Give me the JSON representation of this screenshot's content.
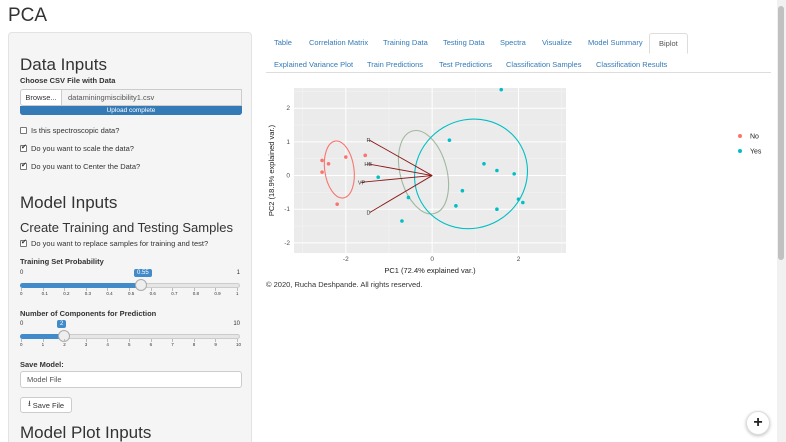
{
  "page_title": "PCA",
  "sidebar": {
    "data_inputs_title": "Data Inputs",
    "csv_label": "Choose CSV File with Data",
    "browse_label": "Browse...",
    "file_name": "dataminingmiscibility1.csv",
    "upload_status": "Upload complete",
    "upload_progress": 1.0,
    "checkboxes": [
      {
        "label": "Is this spectroscopic data?",
        "checked": false
      },
      {
        "label": "Do you want to scale the data?",
        "checked": true
      },
      {
        "label": "Do you want to Center the Data?",
        "checked": true
      }
    ],
    "model_inputs_title": "Model Inputs",
    "create_samples_title": "Create Training and Testing Samples",
    "replace_samples_label": "Do you want to replace samples for training and test?",
    "replace_samples_checked": true,
    "training_prob": {
      "label": "Training Set Probability",
      "min": "0",
      "max": "1",
      "value": "0.55",
      "value_num": 0.55,
      "ticks": [
        "0",
        "0.1",
        "0.2",
        "0.3",
        "0.4",
        "0.5",
        "0.6",
        "0.7",
        "0.8",
        "0.9",
        "1"
      ]
    },
    "components": {
      "label": "Number of Components for Prediction",
      "min": "0",
      "max": "10",
      "value": "2",
      "value_num": 2,
      "ticks": [
        "0",
        "1",
        "2",
        "3",
        "4",
        "5",
        "6",
        "7",
        "8",
        "9",
        "10"
      ]
    },
    "save_model_label": "Save Model:",
    "save_model_value": "Model File",
    "save_file_label": "Save File",
    "model_plot_inputs_title": "Model Plot Inputs"
  },
  "tabs": {
    "row1": [
      "Table",
      "Correlation Matrix",
      "Training Data",
      "Testing Data",
      "Spectra",
      "Visualize",
      "Model Summary",
      "Biplot"
    ],
    "row2": [
      "Explained Variance Plot",
      "Train Predictions",
      "Test Predictions",
      "Classification Samples",
      "Classification Results"
    ],
    "active": "Biplot"
  },
  "footer": "© 2020, Rucha Deshpande. All rights reserved.",
  "colors": {
    "no": "#F8766D",
    "yes": "#00BFC4",
    "arrow": "#8B1A1A",
    "gray_ellipse": "#A0B8A0",
    "panel_bg": "#EBEBEB",
    "accent": "#428bca"
  },
  "chart_data": {
    "type": "scatter",
    "xlabel": "PC1 (72.4% explained var.)",
    "ylabel": "PC2 (18.9% explained var.)",
    "xlim": [
      -3.2,
      3.1
    ],
    "ylim": [
      -2.3,
      2.6
    ],
    "x_ticks": [
      -2,
      0,
      2
    ],
    "y_ticks": [
      -2,
      -1,
      0,
      1,
      2
    ],
    "grid": true,
    "legend_position": "right",
    "series": [
      {
        "name": "No",
        "color": "#F8766D",
        "points": [
          [
            -2.55,
            0.45
          ],
          [
            -2.4,
            0.35
          ],
          [
            -2.55,
            0.1
          ],
          [
            -2.0,
            0.55
          ],
          [
            -1.55,
            0.6
          ],
          [
            -2.2,
            -0.85
          ]
        ]
      },
      {
        "name": "Yes",
        "color": "#00BFC4",
        "points": [
          [
            1.6,
            2.55
          ],
          [
            0.4,
            1.05
          ],
          [
            1.2,
            0.35
          ],
          [
            1.5,
            0.15
          ],
          [
            1.9,
            0.05
          ],
          [
            -1.25,
            -0.05
          ],
          [
            0.7,
            -0.45
          ],
          [
            -0.55,
            -0.65
          ],
          [
            2.0,
            -0.7
          ],
          [
            2.1,
            -0.8
          ],
          [
            0.55,
            -0.9
          ],
          [
            1.5,
            -1.0
          ],
          [
            -0.7,
            -1.35
          ]
        ]
      }
    ],
    "loadings": [
      {
        "label": "R",
        "x": -1.45,
        "y": 1.05
      },
      {
        "label": "HB",
        "x": -1.5,
        "y": 0.35
      },
      {
        "label": "VP",
        "x": -1.65,
        "y": -0.2
      },
      {
        "label": "D",
        "x": -1.45,
        "y": -1.1
      }
    ],
    "ellipses": [
      {
        "group": "No",
        "cx": -2.15,
        "cy": 0.18,
        "rx": 0.88,
        "ry": 1.28,
        "rot": -8
      },
      {
        "group": "gray",
        "cx": -0.2,
        "cy": 0.1,
        "rx": 1.4,
        "ry": 1.9,
        "rot": -15
      },
      {
        "group": "Yes",
        "cx": 0.9,
        "cy": 0.05,
        "rx": 3.25,
        "ry": 2.55,
        "rot": 60
      }
    ],
    "legend": [
      "No",
      "Yes"
    ]
  }
}
